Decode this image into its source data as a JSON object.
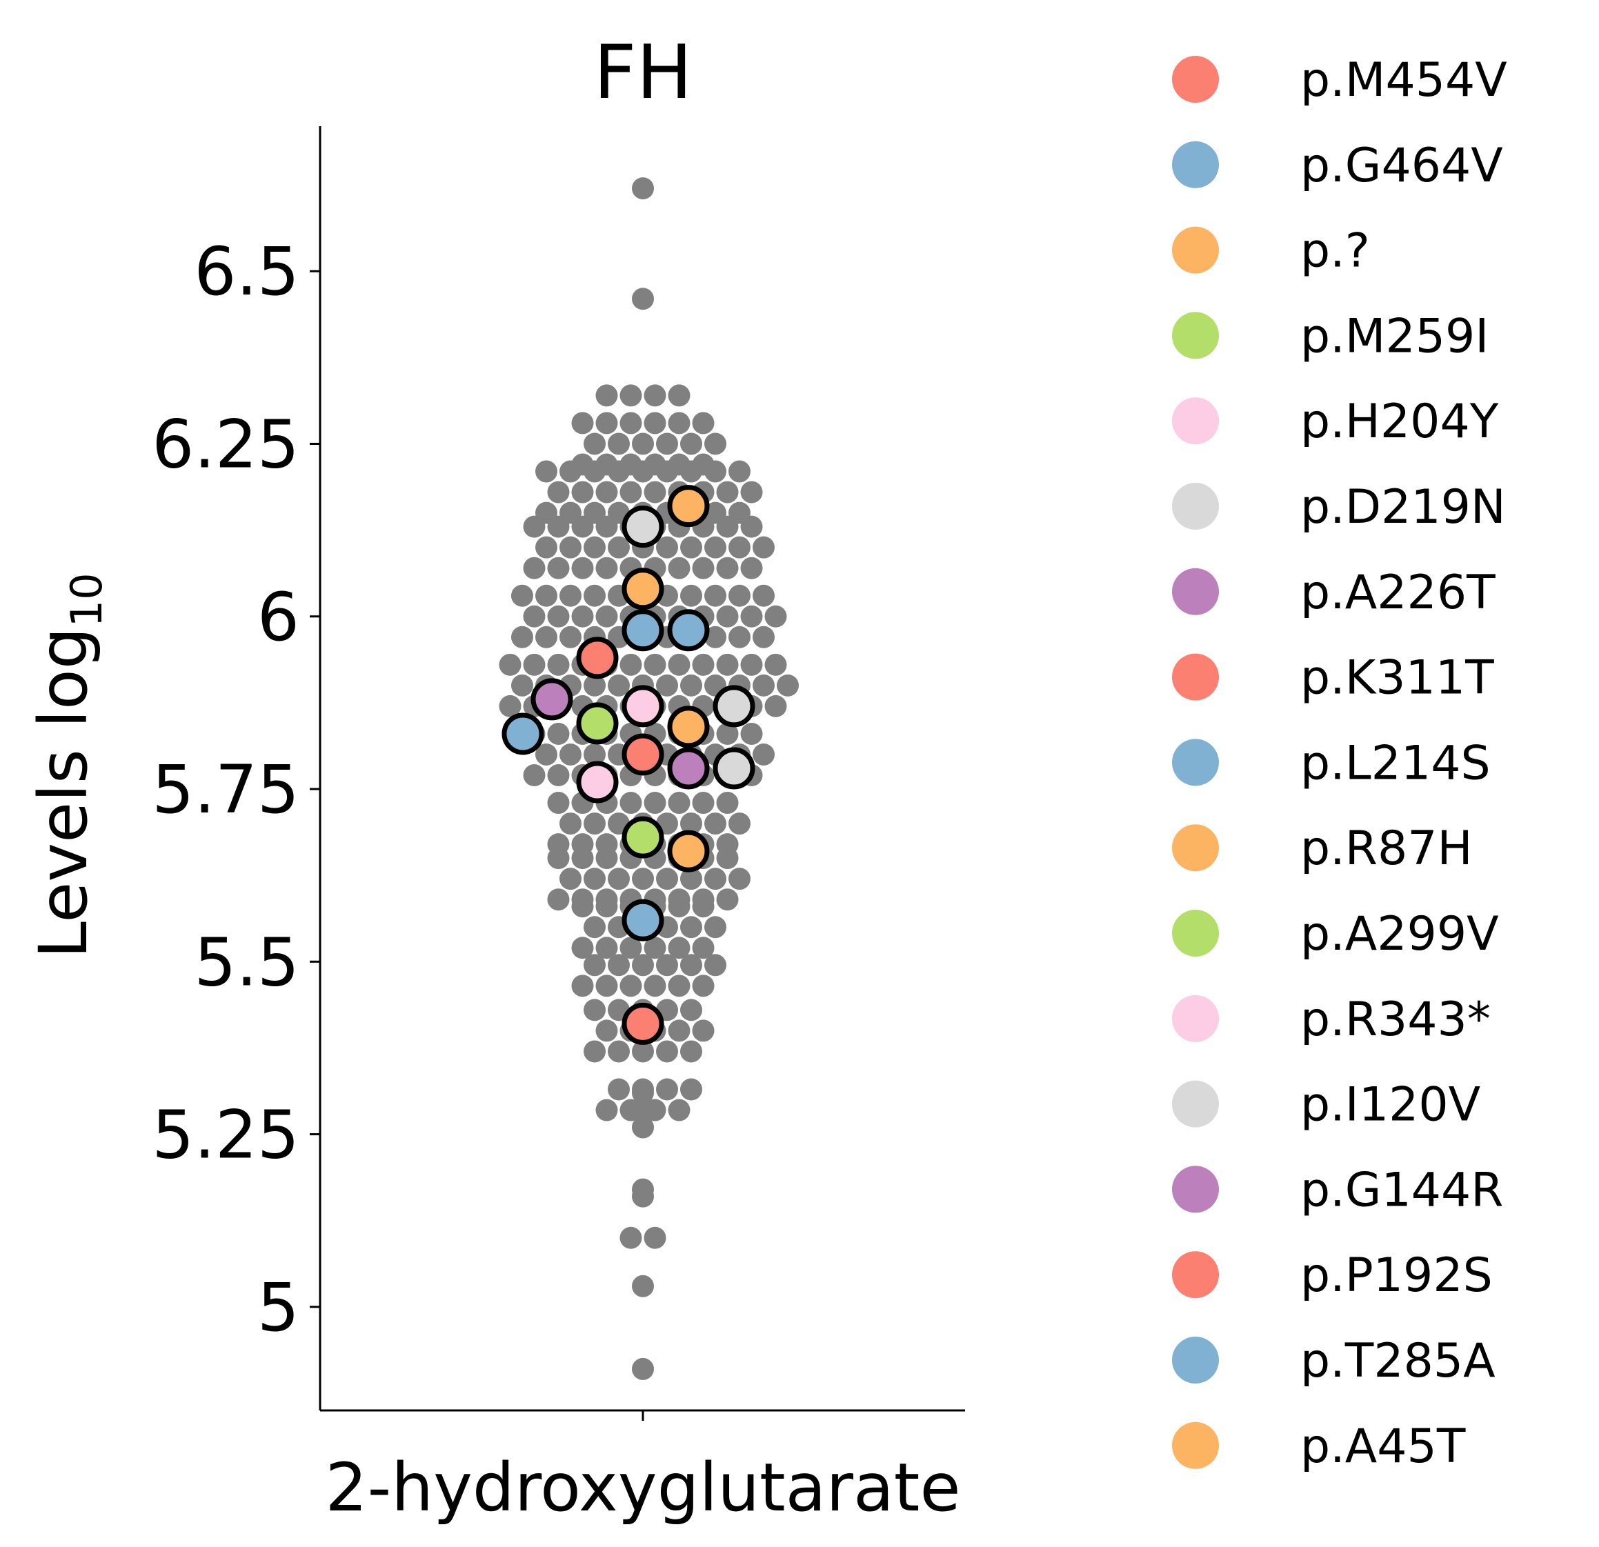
{
  "chart_data": {
    "type": "scatter",
    "subtype": "swarm",
    "title": "FH",
    "xlabel": "2-hydroxyglutarate",
    "ylabel": "Levels",
    "ylabel_suffix": "log",
    "ylabel_subscript": "10",
    "categories": [
      "2-hydroxyglutarate"
    ],
    "ylim": [
      4.85,
      6.71
    ],
    "yticks": [
      {
        "value": 5.0,
        "label": "5"
      },
      {
        "value": 5.25,
        "label": "5.25"
      },
      {
        "value": 5.5,
        "label": "5.5"
      },
      {
        "value": 5.75,
        "label": "5.75"
      },
      {
        "value": 6.0,
        "label": "6"
      },
      {
        "value": 6.25,
        "label": "6.25"
      },
      {
        "value": 6.5,
        "label": "6.5"
      }
    ],
    "background_points": {
      "color": "#808080",
      "density": [
        {
          "y": 5.1,
          "n": 2
        },
        {
          "y": 5.3,
          "n": 8
        },
        {
          "y": 5.4,
          "n": 15
        },
        {
          "y": 5.48,
          "n": 12
        },
        {
          "y": 5.55,
          "n": 17
        },
        {
          "y": 5.62,
          "n": 22
        },
        {
          "y": 5.7,
          "n": 24
        },
        {
          "y": 5.8,
          "n": 30
        },
        {
          "y": 5.9,
          "n": 34
        },
        {
          "y": 6.0,
          "n": 33
        },
        {
          "y": 6.1,
          "n": 30
        },
        {
          "y": 6.18,
          "n": 26
        },
        {
          "y": 6.25,
          "n": 16
        },
        {
          "y": 6.32,
          "n": 4
        }
      ],
      "outliers": [
        6.62,
        6.46,
        5.17,
        5.16,
        5.03,
        4.91,
        5.26,
        5.28,
        5.31
      ]
    },
    "series": [
      {
        "name": "p.M454V",
        "color": "#fb8072",
        "y": 5.8
      },
      {
        "name": "p.G464V",
        "color": "#80b1d3",
        "y": 5.98
      },
      {
        "name": "p.?",
        "color": "#fdb462",
        "y": 5.84
      },
      {
        "name": "p.M259I",
        "color": "#b3de69",
        "y": 5.845
      },
      {
        "name": "p.H204Y",
        "color": "#fccde5",
        "y": 5.87
      },
      {
        "name": "p.D219N",
        "color": "#d9d9d9",
        "y": 5.87
      },
      {
        "name": "p.A226T",
        "color": "#bc80bd",
        "y": 5.78
      },
      {
        "name": "p.K311T",
        "color": "#fb8072",
        "y": 5.41
      },
      {
        "name": "p.L214S",
        "color": "#80b1d3",
        "y": 5.98
      },
      {
        "name": "p.R87H",
        "color": "#fdb462",
        "y": 6.04
      },
      {
        "name": "p.A299V",
        "color": "#b3de69",
        "y": 5.68
      },
      {
        "name": "p.R343*",
        "color": "#fccde5",
        "y": 5.76
      },
      {
        "name": "p.I120V",
        "color": "#d9d9d9",
        "y": 6.13
      },
      {
        "name": "p.G144R",
        "color": "#bc80bd",
        "y": 5.88
      },
      {
        "name": "p.P192S",
        "color": "#fb8072",
        "y": 5.94
      },
      {
        "name": "p.T285A",
        "color": "#80b1d3",
        "y": 5.56
      },
      {
        "name": "p.A45T",
        "color": "#fdb462",
        "y": 5.66
      }
    ],
    "extra_highlight_points": [
      {
        "color": "#fdb462",
        "y": 6.16
      },
      {
        "color": "#d9d9d9",
        "y": 5.78
      },
      {
        "color": "#80b1d3",
        "y": 5.83
      }
    ],
    "legend": {
      "placement": "outside-right"
    },
    "grid": false
  }
}
